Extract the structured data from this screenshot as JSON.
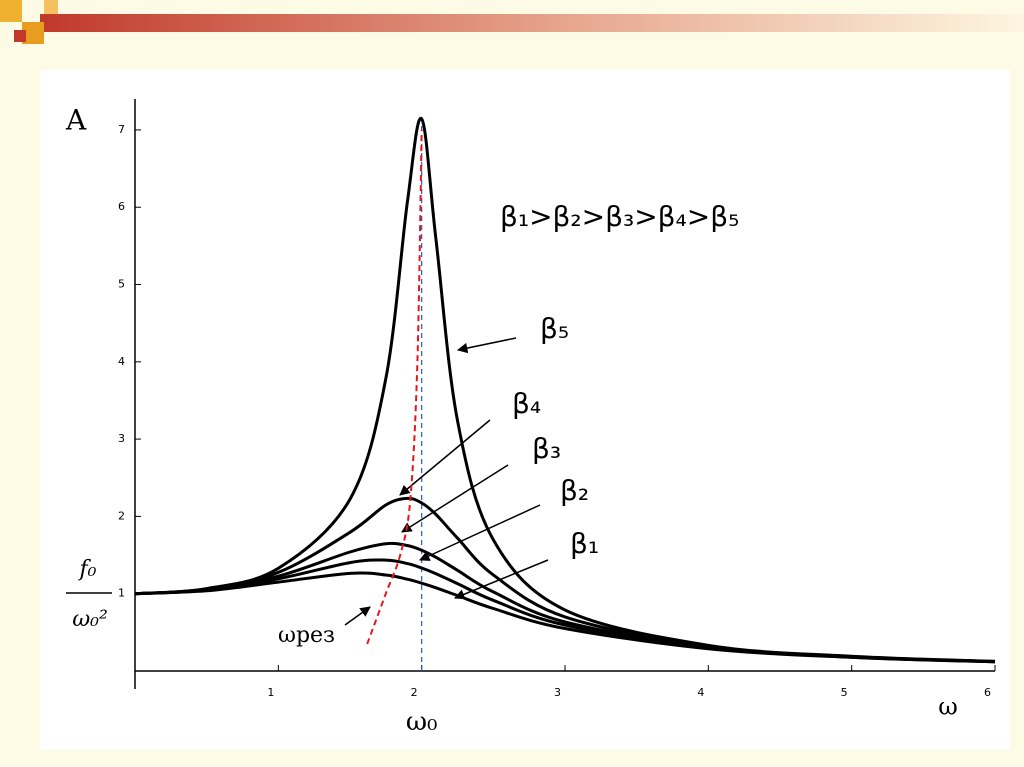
{
  "chart_data": {
    "type": "line",
    "y_label": "A",
    "y_label_fraction": {
      "numerator": "f₀",
      "denominator": "ω₀²"
    },
    "x_label": "ω",
    "annotation": "β₁>β₂>β₃>β₄>β₅",
    "x_marker": {
      "label": "ω₀",
      "value": 2,
      "color": "#1f5fbf"
    },
    "x": [
      0,
      0.5,
      1,
      1.5,
      1.75,
      1.9,
      2,
      2.1,
      2.25,
      2.5,
      3,
      4,
      5,
      6
    ],
    "series": [
      {
        "name": "β₁",
        "color": "#000000",
        "values": [
          1,
          1.038,
          1.15,
          1.263,
          1.242,
          1.188,
          1.136,
          1.076,
          0.976,
          0.809,
          0.55,
          0.288,
          0.176,
          0.119
        ]
      },
      {
        "name": "β₂",
        "color": "#000000",
        "values": [
          1,
          1.046,
          1.193,
          1.403,
          1.435,
          1.39,
          1.333,
          1.259,
          1.131,
          0.915,
          0.595,
          0.298,
          0.179,
          0.12
        ]
      },
      {
        "name": "β₃",
        "color": "#000000",
        "values": [
          1,
          1.052,
          1.226,
          1.54,
          1.647,
          1.624,
          1.5625,
          1.471,
          1.303,
          1.023,
          0.634,
          0.307,
          0.182,
          0.122
        ]
      },
      {
        "name": "β₄",
        "color": "#000000",
        "values": [
          1,
          1.059,
          1.275,
          1.795,
          2.147,
          2.233,
          2.174,
          2.025,
          1.719,
          1.243,
          0.7,
          0.319,
          0.186,
          0.123
        ]
      },
      {
        "name": "β₅",
        "color": "#000000",
        "values": [
          1,
          1.066,
          1.328,
          2.222,
          3.781,
          6.06,
          7.143,
          5.58,
          3.239,
          1.698,
          0.789,
          0.332,
          0.19,
          0.125
        ]
      }
    ],
    "resonance_curve": {
      "name": "ωрез",
      "color": "#e8141a",
      "x": [
        1.62,
        1.75,
        1.85,
        1.92,
        1.97,
        2.0
      ],
      "values": [
        0.35,
        1.0,
        1.5,
        2.2,
        4.0,
        7.0
      ]
    },
    "xlim": [
      0,
      6
    ],
    "ylim": [
      0,
      7.4
    ],
    "xticks": [
      1,
      2,
      3,
      4,
      5,
      6
    ],
    "yticks": [
      1,
      2,
      3,
      4,
      5,
      6,
      7
    ]
  }
}
